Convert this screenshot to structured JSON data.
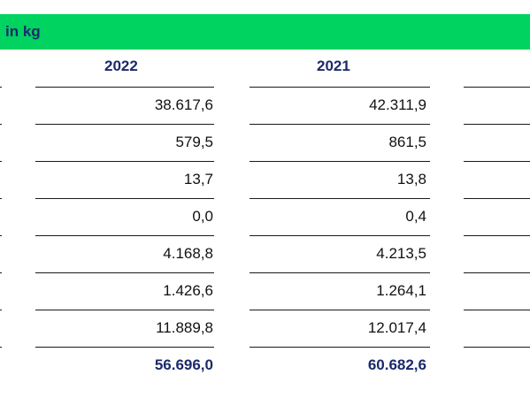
{
  "header": {
    "title": "in kg",
    "background": "#00d35f",
    "text_color": "#1a2a6c"
  },
  "columns": [
    "2022",
    "2021"
  ],
  "rows": [
    {
      "values": [
        "38.617,6",
        "42.311,9"
      ]
    },
    {
      "values": [
        "579,5",
        "861,5"
      ]
    },
    {
      "values": [
        "13,7",
        "13,8"
      ]
    },
    {
      "values": [
        "0,0",
        "0,4"
      ]
    },
    {
      "values": [
        "4.168,8",
        "4.213,5"
      ]
    },
    {
      "values": [
        "1.426,6",
        "1.264,1"
      ]
    },
    {
      "values": [
        "11.889,8",
        "12.017,4"
      ]
    }
  ],
  "total": {
    "values": [
      "56.696,0",
      "60.682,6"
    ]
  }
}
